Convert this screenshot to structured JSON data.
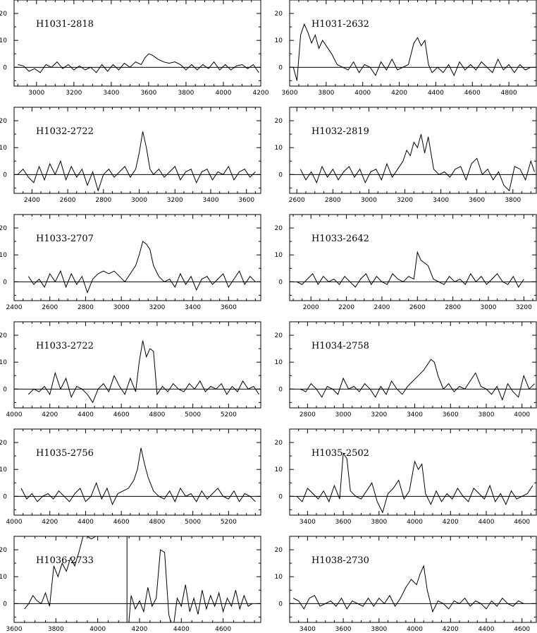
{
  "chart_data": [
    {
      "type": "line",
      "title": "H1031-2818",
      "xlim": [
        2880,
        4200
      ],
      "ylim": [
        -7,
        25
      ],
      "xticks": [
        3000,
        3200,
        3400,
        3600,
        3800,
        4000,
        4200
      ],
      "yticks": [
        0,
        10,
        20
      ],
      "x": [
        2900,
        2930,
        2960,
        2990,
        3020,
        3050,
        3080,
        3110,
        3140,
        3170,
        3200,
        3230,
        3260,
        3290,
        3320,
        3350,
        3380,
        3410,
        3440,
        3470,
        3500,
        3530,
        3560,
        3580,
        3600,
        3620,
        3650,
        3680,
        3710,
        3740,
        3770,
        3800,
        3830,
        3860,
        3890,
        3920,
        3950,
        3980,
        4010,
        4040,
        4070,
        4100,
        4130,
        4160,
        4190
      ],
      "y": [
        1,
        0.5,
        -1.5,
        -0.5,
        -2,
        1,
        0,
        2,
        -0.5,
        1,
        -1,
        0.5,
        -1,
        0,
        -2,
        1,
        -1.5,
        1,
        -1,
        1.5,
        0,
        2,
        1,
        3.5,
        5,
        4.5,
        3,
        2,
        1.5,
        2,
        1,
        -1,
        1,
        -1,
        1,
        -0.5,
        2,
        -1,
        1,
        -1,
        0.5,
        1,
        -0.5,
        1,
        -2
      ]
    },
    {
      "type": "line",
      "title": "H1031-2632",
      "xlim": [
        3600,
        4950
      ],
      "ylim": [
        -7,
        25
      ],
      "xticks": [
        3600,
        3800,
        4000,
        4200,
        4400,
        4600,
        4800
      ],
      "yticks": [
        0,
        10,
        20
      ],
      "x": [
        3620,
        3640,
        3660,
        3680,
        3700,
        3720,
        3740,
        3760,
        3780,
        3800,
        3830,
        3860,
        3890,
        3920,
        3950,
        3980,
        4010,
        4040,
        4070,
        4100,
        4130,
        4160,
        4190,
        4220,
        4250,
        4280,
        4300,
        4320,
        4340,
        4360,
        4380,
        4410,
        4440,
        4470,
        4500,
        4530,
        4560,
        4590,
        4620,
        4650,
        4680,
        4710,
        4740,
        4770,
        4800,
        4830,
        4860,
        4890,
        4920
      ],
      "y": [
        0,
        -5,
        12,
        16,
        13,
        9,
        12,
        7,
        10,
        8,
        5,
        1,
        0,
        -1,
        2,
        -2,
        1,
        0,
        -3,
        2,
        -1,
        3,
        -1,
        0,
        1,
        9,
        11,
        8,
        10,
        1,
        -2,
        0,
        -2,
        1,
        -3,
        2,
        -1,
        1,
        -1,
        2,
        0,
        -2,
        3,
        -1,
        1,
        -2,
        1,
        -1,
        0
      ]
    },
    {
      "type": "line",
      "title": "H1032-2722",
      "xlim": [
        2300,
        3680
      ],
      "ylim": [
        -7,
        25
      ],
      "xticks": [
        2400,
        2600,
        2800,
        3000,
        3200,
        3400,
        3600
      ],
      "yticks": [
        0,
        10,
        20
      ],
      "x": [
        2320,
        2350,
        2380,
        2410,
        2440,
        2470,
        2500,
        2530,
        2560,
        2590,
        2620,
        2650,
        2680,
        2710,
        2740,
        2770,
        2800,
        2830,
        2860,
        2890,
        2920,
        2950,
        2980,
        3000,
        3020,
        3040,
        3060,
        3080,
        3110,
        3140,
        3170,
        3200,
        3230,
        3260,
        3290,
        3320,
        3350,
        3380,
        3410,
        3440,
        3470,
        3500,
        3530,
        3560,
        3590,
        3620,
        3650
      ],
      "y": [
        0,
        2,
        -1,
        -3,
        3,
        -2,
        4,
        0,
        5,
        -2,
        3,
        -1,
        2,
        -4,
        1,
        -6,
        0,
        2,
        -1,
        1,
        3,
        -1,
        2,
        8,
        16,
        10,
        2,
        0,
        2,
        -1,
        1,
        3,
        -2,
        1,
        2,
        -3,
        1,
        2,
        -2,
        1,
        0,
        3,
        -2,
        1,
        2,
        -1,
        1
      ]
    },
    {
      "type": "line",
      "title": "H1032-2819",
      "xlim": [
        2560,
        3930
      ],
      "ylim": [
        -7,
        25
      ],
      "xticks": [
        2600,
        2800,
        3000,
        3200,
        3400,
        3600,
        3800
      ],
      "yticks": [
        0,
        10,
        20
      ],
      "x": [
        2620,
        2650,
        2680,
        2710,
        2740,
        2770,
        2800,
        2830,
        2860,
        2890,
        2920,
        2950,
        2980,
        3010,
        3040,
        3070,
        3100,
        3130,
        3160,
        3190,
        3210,
        3230,
        3250,
        3270,
        3290,
        3310,
        3330,
        3360,
        3390,
        3420,
        3450,
        3480,
        3510,
        3540,
        3570,
        3600,
        3630,
        3660,
        3690,
        3720,
        3750,
        3780,
        3810,
        3840,
        3870,
        3900,
        3920
      ],
      "y": [
        2,
        -2,
        1,
        -3,
        3,
        -1,
        2,
        -2,
        1,
        3,
        -1,
        2,
        -3,
        1,
        2,
        -2,
        4,
        -1,
        2,
        5,
        9,
        7,
        12,
        10,
        15,
        8,
        14,
        2,
        0,
        1,
        -1,
        2,
        3,
        -2,
        4,
        6,
        0,
        2,
        -2,
        1,
        -4,
        -6,
        3,
        2,
        -2,
        5,
        1
      ]
    },
    {
      "type": "line",
      "title": "H1033-2707",
      "xlim": [
        2400,
        3780
      ],
      "ylim": [
        -7,
        25
      ],
      "xticks": [
        2400,
        2600,
        2800,
        3000,
        3200,
        3400,
        3600
      ],
      "yticks": [
        0,
        10,
        20
      ],
      "x": [
        2480,
        2510,
        2540,
        2570,
        2600,
        2630,
        2660,
        2690,
        2720,
        2750,
        2780,
        2810,
        2840,
        2870,
        2900,
        2930,
        2960,
        2990,
        3020,
        3050,
        3080,
        3100,
        3120,
        3140,
        3160,
        3180,
        3210,
        3240,
        3270,
        3300,
        3330,
        3360,
        3390,
        3420,
        3450,
        3480,
        3510,
        3540,
        3570,
        3600,
        3630,
        3660,
        3690,
        3720,
        3750
      ],
      "y": [
        2,
        -1,
        1,
        -2,
        3,
        0,
        4,
        -2,
        3,
        -1,
        2,
        -4,
        1,
        3,
        4,
        3,
        4,
        2,
        0,
        3,
        6,
        10,
        15,
        14,
        12,
        6,
        2,
        0,
        1,
        -2,
        3,
        -1,
        2,
        -3,
        1,
        2,
        -1,
        1,
        3,
        -2,
        1,
        4,
        -1,
        2,
        0
      ]
    },
    {
      "type": "line",
      "title": "H1033-2642",
      "xlim": [
        1880,
        3270
      ],
      "ylim": [
        -7,
        25
      ],
      "xticks": [
        2000,
        2200,
        2400,
        2600,
        2800,
        3000,
        3200
      ],
      "yticks": [
        0,
        10,
        20
      ],
      "x": [
        1920,
        1950,
        1980,
        2010,
        2040,
        2070,
        2100,
        2130,
        2160,
        2190,
        2220,
        2250,
        2280,
        2310,
        2340,
        2370,
        2400,
        2430,
        2460,
        2490,
        2520,
        2550,
        2580,
        2600,
        2620,
        2640,
        2660,
        2690,
        2720,
        2750,
        2780,
        2810,
        2840,
        2870,
        2900,
        2930,
        2960,
        2990,
        3020,
        3050,
        3080,
        3110,
        3140,
        3170,
        3200
      ],
      "y": [
        0,
        -1,
        1,
        3,
        -1,
        2,
        0,
        1,
        -1,
        2,
        0,
        -2,
        1,
        3,
        -1,
        2,
        0,
        -1,
        3,
        1,
        0,
        2,
        1,
        11,
        8,
        7,
        6,
        1,
        0,
        -1,
        2,
        0,
        1,
        -1,
        3,
        0,
        2,
        -1,
        1,
        3,
        0,
        -1,
        2,
        -2,
        1
      ]
    },
    {
      "type": "line",
      "title": "H1033-2722",
      "xlim": [
        4000,
        5380
      ],
      "ylim": [
        -7,
        25
      ],
      "xticks": [
        4000,
        4200,
        4400,
        4600,
        4800,
        5000,
        5200
      ],
      "yticks": [
        0,
        10,
        20
      ],
      "x": [
        4080,
        4110,
        4140,
        4170,
        4200,
        4230,
        4260,
        4290,
        4320,
        4350,
        4380,
        4410,
        4440,
        4470,
        4500,
        4530,
        4560,
        4590,
        4620,
        4650,
        4680,
        4700,
        4720,
        4740,
        4760,
        4780,
        4800,
        4830,
        4860,
        4890,
        4920,
        4950,
        4980,
        5010,
        5040,
        5070,
        5100,
        5130,
        5160,
        5190,
        5220,
        5250,
        5280,
        5310,
        5340,
        5370
      ],
      "y": [
        -2,
        0,
        -1,
        1,
        -2,
        6,
        0,
        4,
        -3,
        1,
        0,
        -2,
        -5,
        0,
        2,
        -1,
        5,
        1,
        -2,
        4,
        -1,
        10,
        18,
        12,
        15,
        14,
        -2,
        1,
        -1,
        2,
        0,
        -1,
        2,
        0,
        3,
        -1,
        1,
        0,
        2,
        -2,
        1,
        -1,
        3,
        0,
        1,
        -2
      ]
    },
    {
      "type": "line",
      "title": "H1034-2758",
      "xlim": [
        2700,
        4080
      ],
      "ylim": [
        -7,
        25
      ],
      "xticks": [
        2800,
        3000,
        3200,
        3400,
        3600,
        3800,
        4000
      ],
      "yticks": [
        0,
        10,
        20
      ],
      "x": [
        2760,
        2790,
        2820,
        2850,
        2880,
        2910,
        2940,
        2970,
        3000,
        3030,
        3060,
        3090,
        3120,
        3150,
        3180,
        3210,
        3240,
        3270,
        3300,
        3330,
        3360,
        3390,
        3420,
        3450,
        3470,
        3490,
        3510,
        3530,
        3560,
        3590,
        3620,
        3650,
        3680,
        3710,
        3740,
        3770,
        3800,
        3830,
        3860,
        3890,
        3920,
        3950,
        3980,
        4010,
        4040,
        4070
      ],
      "y": [
        0,
        -1,
        2,
        0,
        -3,
        1,
        0,
        -2,
        4,
        0,
        1,
        -1,
        2,
        0,
        -3,
        1,
        -2,
        3,
        0,
        -2,
        1,
        3,
        5,
        7,
        9,
        11,
        10,
        5,
        0,
        2,
        -1,
        1,
        0,
        3,
        6,
        1,
        0,
        -2,
        1,
        -4,
        2,
        -1,
        -3,
        5,
        0,
        2
      ]
    },
    {
      "type": "line",
      "title": "H1035-2756",
      "xlim": [
        4000,
        5380
      ],
      "ylim": [
        -7,
        25
      ],
      "xticks": [
        4000,
        4200,
        4400,
        4600,
        4800,
        5000,
        5200
      ],
      "yticks": [
        0,
        10,
        20
      ],
      "x": [
        4040,
        4070,
        4100,
        4130,
        4160,
        4190,
        4220,
        4250,
        4280,
        4310,
        4340,
        4370,
        4400,
        4430,
        4460,
        4490,
        4520,
        4550,
        4580,
        4610,
        4640,
        4670,
        4690,
        4710,
        4730,
        4750,
        4780,
        4810,
        4840,
        4870,
        4900,
        4930,
        4960,
        4990,
        5020,
        5050,
        5080,
        5110,
        5140,
        5170,
        5200,
        5230,
        5260,
        5290,
        5320,
        5350
      ],
      "y": [
        3,
        -1,
        1,
        -2,
        0,
        1,
        -1,
        2,
        0,
        -2,
        1,
        3,
        -2,
        0,
        5,
        -1,
        3,
        -3,
        1,
        2,
        3,
        6,
        10,
        18,
        12,
        7,
        2,
        0,
        -1,
        2,
        -2,
        3,
        0,
        1,
        -2,
        2,
        -1,
        1,
        3,
        0,
        -1,
        2,
        -2,
        1,
        0,
        -2
      ]
    },
    {
      "type": "line",
      "title": "H1035-2502",
      "xlim": [
        3300,
        4680
      ],
      "ylim": [
        -7,
        25
      ],
      "xticks": [
        3400,
        3600,
        3800,
        4000,
        4200,
        4400,
        4600
      ],
      "yticks": [
        0,
        10,
        20
      ],
      "x": [
        3340,
        3370,
        3400,
        3430,
        3460,
        3490,
        3520,
        3550,
        3580,
        3600,
        3620,
        3640,
        3670,
        3700,
        3730,
        3760,
        3790,
        3820,
        3850,
        3880,
        3910,
        3940,
        3970,
        4000,
        4020,
        4040,
        4060,
        4090,
        4120,
        4150,
        4180,
        4210,
        4240,
        4270,
        4300,
        4330,
        4360,
        4390,
        4420,
        4450,
        4480,
        4510,
        4540,
        4570,
        4600,
        4630,
        4660
      ],
      "y": [
        0,
        -2,
        3,
        1,
        -1,
        2,
        -2,
        4,
        -1,
        16,
        14,
        2,
        0,
        -1,
        2,
        5,
        -2,
        -6,
        1,
        3,
        6,
        -1,
        2,
        13,
        10,
        12,
        1,
        -3,
        2,
        -2,
        1,
        -1,
        3,
        0,
        -2,
        3,
        1,
        -1,
        4,
        -2,
        1,
        -3,
        2,
        -1,
        0,
        1,
        4
      ]
    },
    {
      "type": "line",
      "title": "H1036-2733",
      "xlim": [
        3600,
        4780
      ],
      "ylim": [
        -7,
        25
      ],
      "xticks": [
        3600,
        3800,
        4000,
        4200,
        4400,
        4600
      ],
      "yticks": [
        0,
        10,
        20
      ],
      "x": [
        3650,
        3670,
        3690,
        3710,
        3730,
        3750,
        3770,
        3790,
        3810,
        3830,
        3850,
        3870,
        3890,
        3910,
        3930,
        3950,
        3970,
        3990,
        4000,
        4140,
        4140,
        4160,
        4180,
        4200,
        4220,
        4240,
        4260,
        4280,
        4300,
        4320,
        4340,
        4360,
        4380,
        4400,
        4420,
        4440,
        4460,
        4480,
        4500,
        4520,
        4540,
        4560,
        4580,
        4600,
        4620,
        4640,
        4660,
        4680,
        4700,
        4720,
        4740
      ],
      "y": [
        -2,
        0,
        3,
        1,
        0,
        4,
        -1,
        14,
        10,
        15,
        12,
        17,
        14,
        19,
        25,
        25,
        24,
        25,
        25,
        25,
        -15,
        3,
        -2,
        1,
        -3,
        6,
        -1,
        2,
        20,
        19,
        -4,
        -10,
        2,
        -1,
        7,
        -3,
        2,
        -4,
        5,
        -2,
        3,
        -1,
        4,
        -3,
        2,
        -1,
        5,
        -2,
        3,
        -1,
        0
      ]
    },
    {
      "type": "line",
      "title": "H1038-2730",
      "xlim": [
        3300,
        4680
      ],
      "ylim": [
        -7,
        25
      ],
      "xticks": [
        3400,
        3600,
        3800,
        4000,
        4200,
        4400,
        4600
      ],
      "yticks": [
        0,
        10,
        20
      ],
      "x": [
        3320,
        3350,
        3380,
        3410,
        3440,
        3470,
        3500,
        3530,
        3560,
        3590,
        3620,
        3650,
        3680,
        3710,
        3740,
        3770,
        3800,
        3830,
        3860,
        3890,
        3920,
        3950,
        3980,
        4010,
        4030,
        4050,
        4070,
        4100,
        4130,
        4160,
        4190,
        4220,
        4250,
        4280,
        4310,
        4340,
        4370,
        4400,
        4430,
        4460,
        4490,
        4520,
        4550,
        4580,
        4610
      ],
      "y": [
        2,
        1,
        -2,
        2,
        3,
        -1,
        0,
        1,
        -1,
        2,
        -2,
        1,
        0,
        -1,
        2,
        -1,
        2,
        0,
        3,
        -1,
        2,
        6,
        9,
        7,
        11,
        14,
        5,
        -3,
        1,
        0,
        -2,
        1,
        0,
        2,
        -1,
        1,
        0,
        -2,
        1,
        -1,
        2,
        0,
        -1,
        1,
        0
      ]
    }
  ]
}
